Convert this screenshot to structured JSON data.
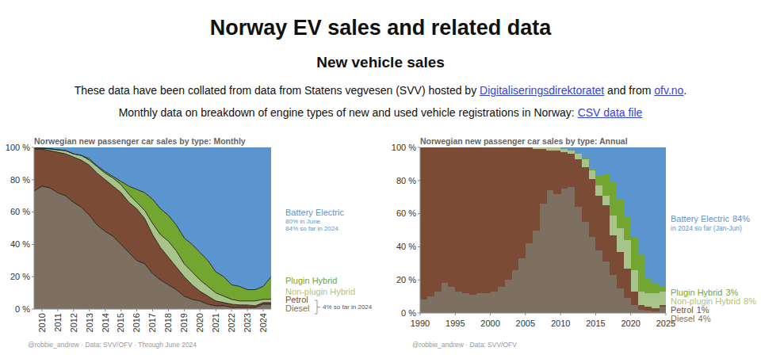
{
  "header": {
    "title": "Norway EV sales and related data",
    "subtitle": "New vehicle sales",
    "intro": [
      [
        {
          "text": "These data have been collated from data from Statens vegvesen (SVV) hosted by ",
          "link": false
        },
        {
          "text": "Digitaliseringsdirektoratet",
          "link": true
        },
        {
          "text": " and from ",
          "link": false
        },
        {
          "text": "ofv.no",
          "link": true
        },
        {
          "text": ".",
          "link": false
        }
      ],
      [
        {
          "text": "Monthly data on breakdown of engine types of new and used vehicle registrations in Norway: ",
          "link": false
        },
        {
          "text": "CSV data file",
          "link": true
        }
      ]
    ]
  },
  "chart_data": [
    {
      "type": "area",
      "title": "Norwegian new passenger car sales by type: Monthly",
      "credits": "@robbie_andrew · Data: SVV/OFV · Through June 2024",
      "stacked": true,
      "grid": false,
      "legend": "right",
      "line_style": "solid",
      "x": [
        2009.5,
        2010,
        2010.5,
        2011,
        2011.5,
        2012,
        2012.5,
        2013,
        2013.5,
        2014,
        2014.5,
        2015,
        2015.5,
        2016,
        2016.5,
        2017,
        2017.5,
        2018,
        2018.5,
        2019,
        2019.5,
        2020,
        2020.5,
        2021,
        2021.5,
        2022,
        2022.5,
        2023,
        2023.5,
        2024,
        2024.5
      ],
      "xlim": [
        2009.5,
        2024.5
      ],
      "xticks": [
        2010,
        2011,
        2012,
        2013,
        2014,
        2015,
        2016,
        2017,
        2018,
        2019,
        2020,
        2021,
        2022,
        2023,
        2024
      ],
      "ylim": [
        0,
        100
      ],
      "yticks": [
        {
          "value": 0,
          "label": "0 %"
        },
        {
          "value": 20,
          "label": "20 %"
        },
        {
          "value": 40,
          "label": "40 %"
        },
        {
          "value": 60,
          "label": "60 %"
        },
        {
          "value": 80,
          "label": "80 %"
        },
        {
          "value": 100,
          "label": "100 %"
        }
      ],
      "annotations": [
        "4% so far in 2024"
      ],
      "series": [
        {
          "name": "Diesel",
          "color": "#7d7060",
          "values": [
            73,
            76,
            75,
            72,
            70,
            66,
            63,
            58,
            52,
            48,
            45,
            40,
            35,
            30,
            28,
            22,
            18,
            15,
            12,
            8,
            6,
            5,
            3,
            2,
            2,
            1,
            1,
            1,
            1,
            3,
            3
          ]
        },
        {
          "name": "Petrol",
          "color": "#7b4b36",
          "values": [
            26,
            23,
            23,
            25,
            26,
            28,
            29,
            31,
            32,
            32,
            31,
            32,
            31,
            32,
            28,
            24,
            20,
            17,
            14,
            12,
            9,
            6,
            5,
            3,
            2,
            2,
            1.5,
            1.5,
            1,
            1,
            1
          ]
        },
        {
          "name": "Non-plugin Hybrid",
          "color": "#a9c48b",
          "values": [
            0.5,
            0.5,
            1,
            1.5,
            2,
            2,
            3,
            3,
            4,
            4,
            5,
            5,
            5,
            4,
            5,
            7,
            8,
            10,
            10,
            8,
            8,
            7,
            6,
            5,
            4,
            3,
            2.5,
            2.5,
            3,
            2,
            2
          ]
        },
        {
          "name": "Plugin Hybrid",
          "color": "#72a630",
          "values": [
            0.1,
            0.1,
            0.3,
            0,
            0,
            0,
            0,
            1,
            0.5,
            1,
            1,
            2,
            5,
            8,
            11,
            15,
            16,
            16,
            16,
            16,
            17,
            17,
            16,
            13,
            12,
            9,
            9,
            7,
            7,
            8,
            14
          ]
        },
        {
          "name": "Battery Electric",
          "color": "#5b95d0",
          "notes": [
            "80% in June",
            "84% so far in 2024"
          ],
          "values": [
            0.4,
            0.4,
            0.7,
            1.5,
            2,
            4,
            5,
            7,
            11.5,
            15,
            18,
            21,
            24,
            26,
            28,
            32,
            38,
            42,
            48,
            56,
            60,
            65,
            70,
            77,
            80,
            85,
            86,
            88,
            88,
            86,
            80
          ]
        }
      ]
    },
    {
      "type": "area",
      "title": "Norwegian new passenger car sales by type: Annual",
      "credits": "@robbie_andrew · Data: SVV/OFV",
      "stacked": true,
      "grid": false,
      "legend": "right",
      "line_style": "step",
      "x": [
        1990,
        1991,
        1992,
        1993,
        1994,
        1995,
        1996,
        1997,
        1998,
        1999,
        2000,
        2001,
        2002,
        2003,
        2004,
        2005,
        2006,
        2007,
        2008,
        2009,
        2010,
        2011,
        2012,
        2013,
        2014,
        2015,
        2016,
        2017,
        2018,
        2019,
        2020,
        2021,
        2022,
        2023,
        2024
      ],
      "xlim": [
        1990,
        2025
      ],
      "xticks": [
        1990,
        1995,
        2000,
        2005,
        2010,
        2015,
        2020,
        2025
      ],
      "ylim": [
        0,
        100
      ],
      "yticks": [
        {
          "value": 0,
          "label": "0 %"
        },
        {
          "value": 20,
          "label": "20 %"
        },
        {
          "value": 40,
          "label": "40 %"
        },
        {
          "value": 60,
          "label": "60 %"
        },
        {
          "value": 80,
          "label": "80 %"
        },
        {
          "value": 100,
          "label": "100 %"
        }
      ],
      "series": [
        {
          "name": "Diesel",
          "share_label": "4%",
          "color": "#7d7060",
          "values": [
            8,
            10,
            13,
            18,
            16,
            13,
            12,
            11,
            12,
            12,
            13,
            16,
            20,
            26,
            33,
            42,
            50,
            66,
            74,
            72,
            75,
            76,
            64,
            55,
            46,
            38,
            31,
            23,
            15,
            9,
            5,
            2,
            1.5,
            1,
            4
          ]
        },
        {
          "name": "Petrol",
          "share_label": "1%",
          "color": "#7b4b36",
          "values": [
            92,
            90,
            87,
            82,
            84,
            87,
            88,
            89,
            88,
            88,
            87,
            84,
            80,
            74,
            67,
            58,
            49,
            33,
            24,
            26,
            22,
            20,
            29,
            33,
            35,
            33,
            34,
            24,
            22,
            18,
            8,
            3,
            2.5,
            2,
            1
          ]
        },
        {
          "name": "Non-plugin Hybrid",
          "share_label": "8%",
          "color": "#a9c48b",
          "values": [
            0,
            0,
            0,
            0,
            0,
            0,
            0,
            0,
            0,
            0,
            0,
            0,
            0,
            0,
            0,
            0,
            1,
            1,
            2,
            2,
            2,
            2,
            3,
            5,
            5,
            6,
            6,
            12,
            14,
            17,
            13,
            8,
            8,
            9,
            8
          ]
        },
        {
          "name": "Plugin Hybrid",
          "share_label": "3%",
          "color": "#72a630",
          "values": [
            0,
            0,
            0,
            0,
            0,
            0,
            0,
            0,
            0,
            0,
            0,
            0,
            0,
            0,
            0,
            0,
            0,
            0,
            0,
            0,
            0,
            0,
            0,
            1,
            1,
            6,
            13,
            20,
            18,
            14,
            20,
            22,
            9,
            6,
            3
          ]
        },
        {
          "name": "Battery Electric",
          "share_label": "84%",
          "color": "#5b95d0",
          "notes": [
            "in 2024 so far (Jan-Jun)"
          ],
          "values": [
            0,
            0,
            0,
            0,
            0,
            0,
            0,
            0,
            0,
            0,
            0,
            0,
            0,
            0,
            0,
            0,
            0,
            0,
            0,
            0,
            1,
            2,
            4,
            6,
            13,
            17,
            16,
            21,
            31,
            42,
            54,
            65,
            79,
            82,
            84
          ]
        }
      ]
    }
  ]
}
